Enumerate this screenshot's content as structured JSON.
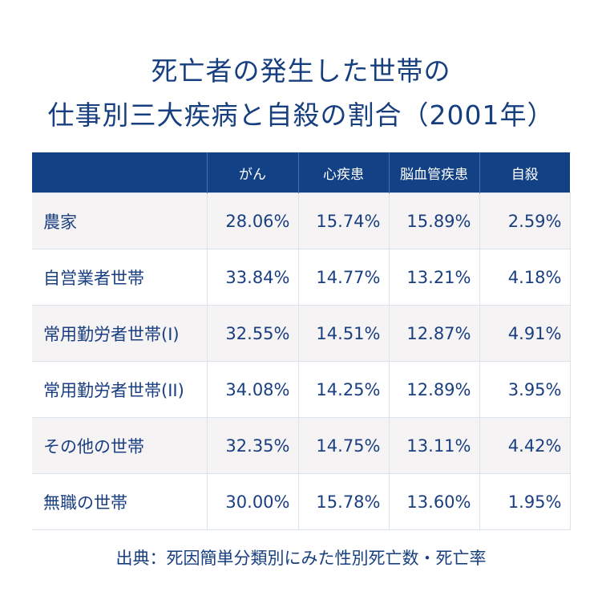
{
  "title": {
    "line1": "死亡者の発生した世帯の",
    "line2": "仕事別三大疾病と自殺の割合（2001年）"
  },
  "table": {
    "headers": [
      "",
      "がん",
      "心疾患",
      "脳血管疾患",
      "自殺"
    ],
    "rows": [
      {
        "label": "農家",
        "values": [
          "28.06%",
          "15.74%",
          "15.89%",
          "2.59%"
        ]
      },
      {
        "label": "自営業者世帯",
        "values": [
          "33.84%",
          "14.77%",
          "13.21%",
          "4.18%"
        ]
      },
      {
        "label": "常用勤労者世帯(I)",
        "values": [
          "32.55%",
          "14.51%",
          "12.87%",
          "4.91%"
        ]
      },
      {
        "label": "常用勤労者世帯(II)",
        "values": [
          "34.08%",
          "14.25%",
          "12.89%",
          "3.95%"
        ]
      },
      {
        "label": "その他の世帯",
        "values": [
          "32.35%",
          "14.75%",
          "13.11%",
          "4.42%"
        ]
      },
      {
        "label": "無職の世帯",
        "values": [
          "30.00%",
          "15.78%",
          "13.60%",
          "1.95%"
        ]
      }
    ]
  },
  "source": "出典：死因簡単分類別にみた性別死亡数・死亡率",
  "colors": {
    "header_bg": "#124185",
    "text": "#1a3f80",
    "row_alt": "#f5f3f4"
  }
}
